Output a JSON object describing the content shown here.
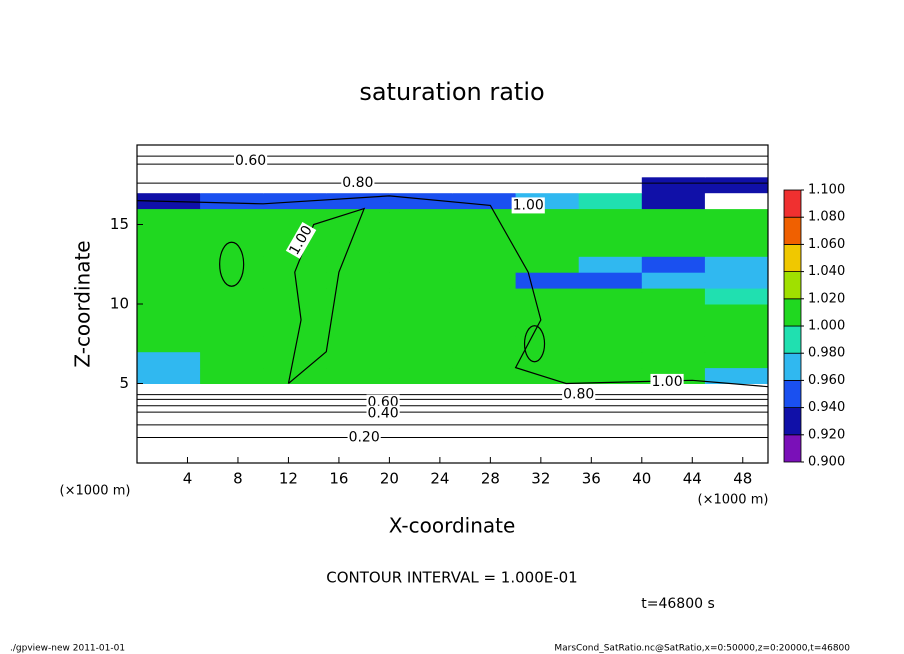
{
  "chart_data": {
    "type": "heatmap",
    "title": "saturation ratio",
    "x_label": "X-coordinate",
    "y_label": "Z-coordinate",
    "x_unit_labels": [
      "(×1000 m)",
      "(×1000 m)"
    ],
    "xlim": [
      0,
      50
    ],
    "ylim": [
      0,
      20
    ],
    "xticks": [
      4,
      8,
      12,
      16,
      20,
      24,
      28,
      32,
      36,
      40,
      44,
      48
    ],
    "yticks": [
      5,
      10,
      15
    ],
    "x": [
      2.5,
      7.5,
      12.5,
      17.5,
      22.5,
      27.5,
      32.5,
      37.5,
      42.5,
      47.5
    ],
    "z": [
      0.5,
      1.5,
      2.5,
      3.5,
      4.5,
      5.5,
      6.5,
      7.5,
      8.5,
      9.5,
      10.5,
      11.5,
      12.5,
      13.5,
      14.5,
      15.5,
      16.5,
      17.5,
      18.5,
      19.5
    ],
    "values": [
      [
        0.1,
        0.1,
        0.1,
        0.1,
        0.1,
        0.1,
        0.1,
        0.1,
        0.1,
        0.1
      ],
      [
        0.2,
        0.2,
        0.2,
        0.2,
        0.2,
        0.2,
        0.2,
        0.2,
        0.2,
        0.2
      ],
      [
        0.3,
        0.3,
        0.3,
        0.3,
        0.3,
        0.3,
        0.3,
        0.3,
        0.3,
        0.3
      ],
      [
        0.55,
        0.55,
        0.55,
        0.55,
        0.55,
        0.55,
        0.55,
        0.55,
        0.55,
        0.55
      ],
      [
        0.85,
        0.85,
        0.85,
        0.85,
        0.85,
        0.85,
        0.85,
        0.85,
        0.85,
        0.85
      ],
      [
        0.97,
        1.0,
        1.0,
        1.0,
        1.0,
        1.0,
        1.0,
        1.0,
        1.0,
        0.97
      ],
      [
        0.97,
        1.0,
        1.0,
        1.0,
        1.0,
        1.0,
        1.0,
        1.0,
        1.0,
        1.0
      ],
      [
        1.0,
        1.0,
        1.0,
        1.0,
        1.0,
        1.0,
        1.0,
        1.0,
        1.0,
        1.0
      ],
      [
        1.0,
        1.0,
        1.0,
        1.0,
        1.0,
        1.0,
        1.0,
        1.0,
        1.0,
        1.0
      ],
      [
        1.0,
        1.0,
        1.0,
        1.0,
        1.0,
        1.0,
        1.0,
        1.0,
        1.0,
        1.0
      ],
      [
        1.0,
        1.0,
        1.0,
        1.0,
        1.0,
        1.0,
        1.0,
        1.0,
        1.0,
        0.98
      ],
      [
        1.0,
        1.0,
        1.0,
        1.0,
        1.0,
        1.0,
        0.95,
        0.95,
        0.96,
        0.97
      ],
      [
        1.0,
        1.0,
        1.0,
        1.0,
        1.0,
        1.0,
        1.0,
        0.96,
        0.95,
        0.96
      ],
      [
        1.0,
        1.0,
        1.0,
        1.0,
        1.0,
        1.0,
        1.0,
        1.0,
        1.0,
        1.0
      ],
      [
        1.0,
        1.0,
        1.0,
        1.0,
        1.0,
        1.0,
        1.0,
        1.0,
        1.0,
        1.0
      ],
      [
        1.0,
        1.0,
        1.0,
        1.0,
        1.0,
        1.0,
        1.0,
        1.0,
        1.0,
        1.0
      ],
      [
        0.93,
        0.95,
        0.95,
        0.94,
        0.95,
        0.95,
        0.96,
        0.98,
        0.92,
        0.88
      ],
      [
        0.85,
        0.85,
        0.85,
        0.85,
        0.85,
        0.85,
        0.85,
        0.85,
        0.93,
        0.92
      ],
      [
        0.7,
        0.7,
        0.7,
        0.7,
        0.7,
        0.7,
        0.7,
        0.7,
        0.7,
        0.7
      ],
      [
        0.5,
        0.5,
        0.5,
        0.5,
        0.5,
        0.5,
        0.5,
        0.5,
        0.5,
        0.5
      ]
    ],
    "colorbar_ticks": [
      {
        "value": 0.9,
        "label": "0.900"
      },
      {
        "value": 0.92,
        "label": "0.920"
      },
      {
        "value": 0.94,
        "label": "0.940"
      },
      {
        "value": 0.96,
        "label": "0.960"
      },
      {
        "value": 0.98,
        "label": "0.980"
      },
      {
        "value": 1.0,
        "label": "1.000"
      },
      {
        "value": 1.02,
        "label": "1.020"
      },
      {
        "value": 1.04,
        "label": "1.040"
      },
      {
        "value": 1.06,
        "label": "1.060"
      },
      {
        "value": 1.08,
        "label": "1.080"
      },
      {
        "value": 1.1,
        "label": "1.100"
      }
    ],
    "colors": [
      "#7a10b8",
      "#1010a8",
      "#1a50f0",
      "#30b8f0",
      "#20e0b0",
      "#20d820",
      "#a0e000",
      "#f0c800",
      "#f06000",
      "#f03030",
      "#f89090"
    ],
    "contour_labels": [
      "0.60",
      "0.80",
      "1.00",
      "1.00",
      "0.80",
      "1.00",
      "0.60",
      "0.40",
      "0.20"
    ],
    "contour_interval": "CONTOUR INTERVAL = 1.000E-01",
    "time_label": "t=46800 s",
    "footer_left": "./gpview-new   2011-01-01",
    "footer_right": "MarsCond_SatRatio.nc@SatRatio,x=0:50000,z=0:20000,t=46800"
  }
}
